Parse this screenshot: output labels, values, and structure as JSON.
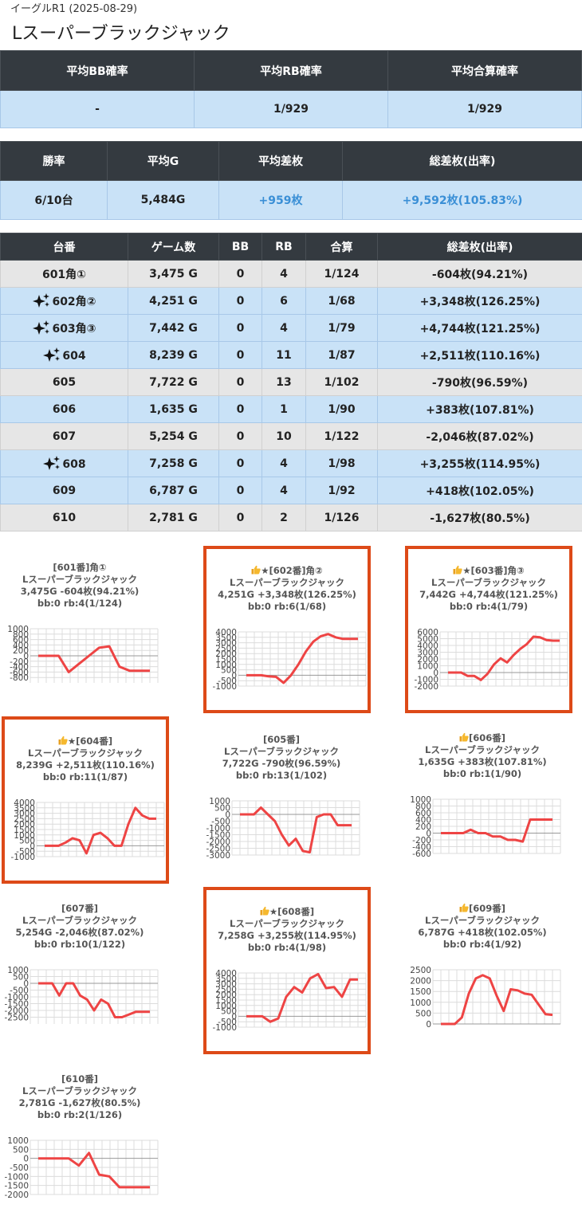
{
  "header": {
    "subtitle": "イーグルR1 (2025-08-29)",
    "title": "Lスーパーブラックジャック"
  },
  "summary1": {
    "headers": [
      "平均BB確率",
      "平均RB確率",
      "平均合算確率"
    ],
    "values": [
      "-",
      "1/929",
      "1/929"
    ]
  },
  "summary2": {
    "headers": [
      "勝率",
      "平均G",
      "平均差枚",
      "総差枚(出率)"
    ],
    "values": [
      "6/10台",
      "5,484G",
      "+959枚",
      "+9,592枚(105.83%)"
    ]
  },
  "machines_table": {
    "headers": [
      "台番",
      "ゲーム数",
      "BB",
      "RB",
      "合算",
      "総差枚(出率)"
    ],
    "rows": [
      {
        "id": "601角①",
        "games": "3,475 G",
        "bb": "0",
        "rb": "4",
        "combined": "1/124",
        "diff": "-604枚(94.21%)",
        "row_style": "gray",
        "sparkle": false
      },
      {
        "id": "602角②",
        "games": "4,251 G",
        "bb": "0",
        "rb": "6",
        "combined": "1/68",
        "diff": "+3,348枚(126.25%)",
        "row_style": "blue",
        "sparkle": true
      },
      {
        "id": "603角③",
        "games": "7,442 G",
        "bb": "0",
        "rb": "4",
        "combined": "1/79",
        "diff": "+4,744枚(121.25%)",
        "row_style": "blue",
        "sparkle": true
      },
      {
        "id": "604",
        "games": "8,239 G",
        "bb": "0",
        "rb": "11",
        "combined": "1/87",
        "diff": "+2,511枚(110.16%)",
        "row_style": "blue",
        "sparkle": true
      },
      {
        "id": "605",
        "games": "7,722 G",
        "bb": "0",
        "rb": "13",
        "combined": "1/102",
        "diff": "-790枚(96.59%)",
        "row_style": "gray",
        "sparkle": false
      },
      {
        "id": "606",
        "games": "1,635 G",
        "bb": "0",
        "rb": "1",
        "combined": "1/90",
        "diff": "+383枚(107.81%)",
        "row_style": "blue",
        "sparkle": false
      },
      {
        "id": "607",
        "games": "5,254 G",
        "bb": "0",
        "rb": "10",
        "combined": "1/122",
        "diff": "-2,046枚(87.02%)",
        "row_style": "gray",
        "sparkle": false
      },
      {
        "id": "608",
        "games": "7,258 G",
        "bb": "0",
        "rb": "4",
        "combined": "1/98",
        "diff": "+3,255枚(114.95%)",
        "row_style": "blue",
        "sparkle": true
      },
      {
        "id": "609",
        "games": "6,787 G",
        "bb": "0",
        "rb": "4",
        "combined": "1/92",
        "diff": "+418枚(102.05%)",
        "row_style": "blue",
        "sparkle": false
      },
      {
        "id": "610",
        "games": "2,781 G",
        "bb": "0",
        "rb": "2",
        "combined": "1/126",
        "diff": "-1,627枚(80.5%)",
        "row_style": "gray",
        "sparkle": false
      }
    ]
  },
  "icons": {
    "sparkle": "sparkles-icon",
    "thumb": "thumbs-up-icon"
  },
  "colors": {
    "header_bg": "#343a40",
    "row_blue": "#c9e2f7",
    "row_gray": "#e6e6e6",
    "plus_text": "#3a8fd6",
    "highlight_border": "#dd4a18",
    "line": "#ee4444"
  },
  "chart_data": [
    {
      "type": "line",
      "title": "[601番]角①",
      "machine": "Lスーパーブラックジャック",
      "stats": "3,475G -604枚(94.21%)",
      "counts": "bb:0 rb:4(1/124)",
      "highlight": false,
      "thumb": false,
      "ylim": [
        -1000,
        1000
      ],
      "yticks": [
        1000,
        800,
        600,
        400,
        200,
        0,
        -200,
        -400,
        -600,
        -800
      ],
      "values": [
        0,
        0,
        0,
        -600,
        -300,
        0,
        300,
        350,
        -400,
        -550,
        -550,
        -550
      ]
    },
    {
      "type": "line",
      "title": "★[602番]角②",
      "machine": "Lスーパーブラックジャック",
      "stats": "4,251G +3,348枚(126.25%)",
      "counts": "bb:0 rb:6(1/68)",
      "highlight": true,
      "thumb": true,
      "ylim": [
        -1000,
        4000
      ],
      "yticks": [
        4000,
        3500,
        3000,
        2500,
        2000,
        1500,
        1000,
        500,
        0,
        -500,
        -1000
      ],
      "values": [
        0,
        0,
        0,
        -100,
        -150,
        -700,
        0,
        1000,
        2200,
        3100,
        3600,
        3800,
        3500,
        3350,
        3350,
        3350
      ]
    },
    {
      "type": "line",
      "title": "★[603番]角③",
      "machine": "Lスーパーブラックジャック",
      "stats": "7,442G +4,744枚(121.25%)",
      "counts": "bb:0 rb:4(1/79)",
      "highlight": true,
      "thumb": true,
      "ylim": [
        -2000,
        6000
      ],
      "yticks": [
        6000,
        5000,
        4000,
        3000,
        2000,
        1000,
        0,
        -1000,
        -2000
      ],
      "values": [
        0,
        0,
        0,
        -500,
        -500,
        -1100,
        -200,
        1200,
        2100,
        1500,
        2600,
        3500,
        4200,
        5300,
        5200,
        4800,
        4700,
        4700
      ]
    },
    {
      "type": "line",
      "title": "★[604番]",
      "machine": "Lスーパーブラックジャック",
      "stats": "8,239G +2,511枚(110.16%)",
      "counts": "bb:0 rb:11(1/87)",
      "highlight": true,
      "thumb": true,
      "ylim": [
        -1000,
        4000
      ],
      "yticks": [
        4000,
        3500,
        3000,
        2500,
        2000,
        1500,
        1000,
        500,
        0,
        -500,
        -1000
      ],
      "values": [
        0,
        0,
        0,
        300,
        700,
        500,
        -700,
        1000,
        1200,
        700,
        0,
        0,
        2000,
        3500,
        2800,
        2500,
        2500
      ]
    },
    {
      "type": "line",
      "title": "[605番]",
      "machine": "Lスーパーブラックジャック",
      "stats": "7,722G -790枚(96.59%)",
      "counts": "bb:0 rb:13(1/102)",
      "highlight": false,
      "thumb": false,
      "ylim": [
        -3000,
        1000
      ],
      "yticks": [
        1000,
        500,
        0,
        -500,
        -1000,
        -1500,
        -2000,
        -2500,
        -3000
      ],
      "values": [
        0,
        0,
        0,
        500,
        0,
        -500,
        -1500,
        -2300,
        -1800,
        -2700,
        -2800,
        -200,
        0,
        0,
        -800,
        -800,
        -800
      ]
    },
    {
      "type": "line",
      "title": "[606番]",
      "machine": "Lスーパーブラックジャック",
      "stats": "1,635G +383枚(107.81%)",
      "counts": "bb:0 rb:1(1/90)",
      "highlight": false,
      "thumb": true,
      "ylim": [
        -600,
        1000
      ],
      "yticks": [
        1000,
        800,
        600,
        400,
        200,
        0,
        -200,
        -400,
        -600
      ],
      "values": [
        0,
        0,
        0,
        0,
        100,
        0,
        0,
        -100,
        -100,
        -200,
        -200,
        -250,
        400,
        400,
        400,
        400
      ]
    },
    {
      "type": "line",
      "title": "[607番]",
      "machine": "Lスーパーブラックジャック",
      "stats": "5,254G -2,046枚(87.02%)",
      "counts": "bb:0 rb:10(1/122)",
      "highlight": false,
      "thumb": false,
      "ylim": [
        -3000,
        1000
      ],
      "yticks": [
        1000,
        500,
        0,
        -500,
        -1000,
        -1500,
        -2000,
        -2500
      ],
      "values": [
        0,
        0,
        0,
        -900,
        0,
        0,
        -900,
        -1200,
        -2000,
        -1200,
        -1500,
        -2500,
        -2500,
        -2300,
        -2100,
        -2100,
        -2100
      ]
    },
    {
      "type": "line",
      "title": "★[608番]",
      "machine": "Lスーパーブラックジャック",
      "stats": "7,258G +3,255枚(114.95%)",
      "counts": "bb:0 rb:4(1/98)",
      "highlight": true,
      "thumb": true,
      "ylim": [
        -1000,
        4000
      ],
      "yticks": [
        4000,
        3500,
        3000,
        2500,
        2000,
        1500,
        1000,
        500,
        0,
        -500,
        -1000
      ],
      "values": [
        0,
        0,
        0,
        -500,
        -200,
        1800,
        2700,
        2200,
        3500,
        3900,
        2600,
        2700,
        1800,
        3400,
        3400
      ]
    },
    {
      "type": "line",
      "title": "[609番]",
      "machine": "Lスーパーブラックジャック",
      "stats": "6,787G +418枚(102.05%)",
      "counts": "bb:0 rb:4(1/92)",
      "highlight": false,
      "thumb": true,
      "ylim": [
        0,
        2500
      ],
      "yticks": [
        2500,
        2000,
        1500,
        1000,
        500,
        0
      ],
      "values": [
        0,
        0,
        0,
        300,
        1400,
        2100,
        2250,
        2100,
        1300,
        600,
        1600,
        1550,
        1400,
        1350,
        900,
        450,
        420
      ]
    },
    {
      "type": "line",
      "title": "[610番]",
      "machine": "Lスーパーブラックジャック",
      "stats": "2,781G -1,627枚(80.5%)",
      "counts": "bb:0 rb:2(1/126)",
      "highlight": false,
      "thumb": false,
      "ylim": [
        -2000,
        1000
      ],
      "yticks": [
        1000,
        500,
        0,
        -500,
        -1000,
        -1500,
        -2000
      ],
      "values": [
        0,
        0,
        0,
        0,
        -400,
        300,
        -900,
        -1000,
        -1600,
        -1600,
        -1600,
        -1600
      ]
    }
  ]
}
